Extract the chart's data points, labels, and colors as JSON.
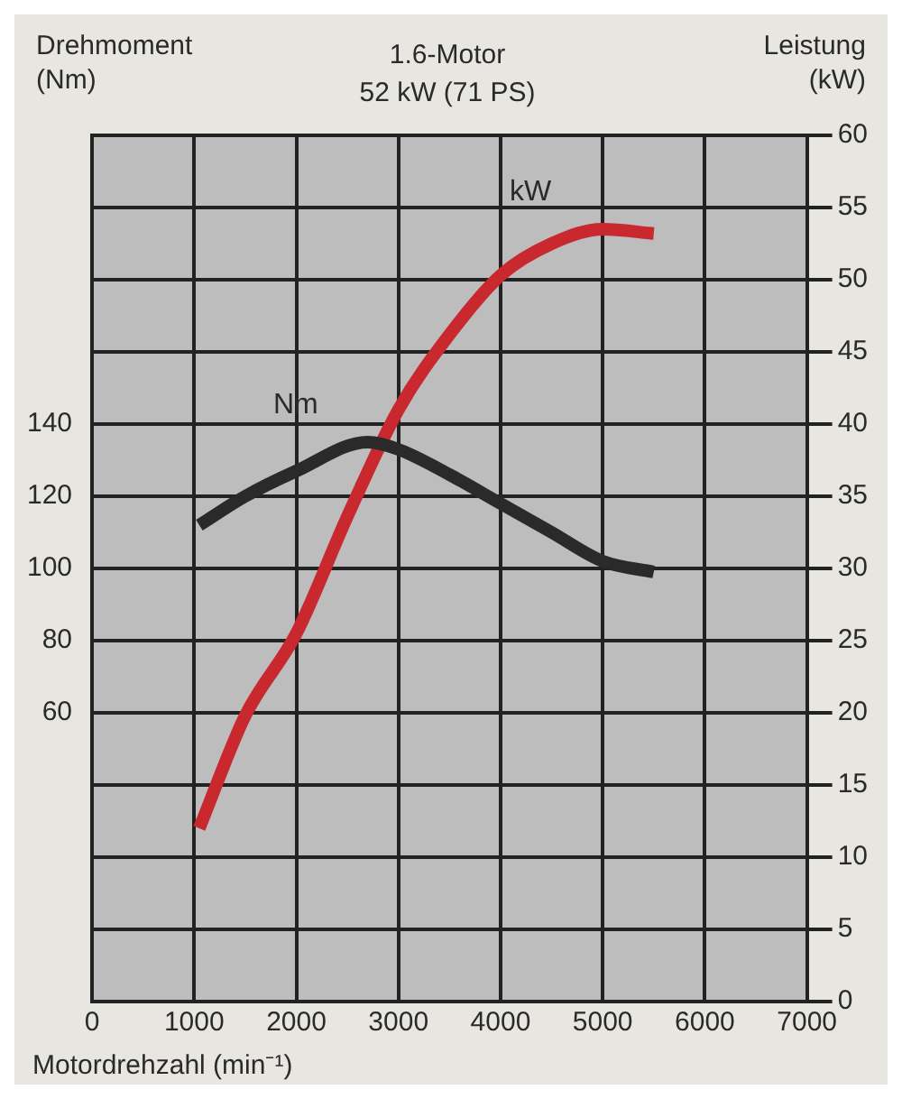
{
  "chart_data": {
    "type": "line",
    "title": "1.6-Motor",
    "subtitle": "52 kW (71 PS)",
    "xlabel": "Motordrehzahl (min⁻¹)",
    "ylabel": "Drehmoment (Nm)",
    "y2label": "Leistung (kW)",
    "xlim": [
      0,
      7000
    ],
    "xticks": [
      0,
      1000,
      2000,
      3000,
      4000,
      5000,
      6000,
      7000
    ],
    "ylim": [
      -20,
      220
    ],
    "yticks": [
      60,
      80,
      100,
      120,
      140
    ],
    "y2lim": [
      0,
      60
    ],
    "y2ticks": [
      0,
      5,
      10,
      15,
      20,
      25,
      30,
      35,
      40,
      45,
      50,
      55,
      60
    ],
    "grid": true,
    "legend": false,
    "marker": "none",
    "line_style": "solid",
    "series": [
      {
        "name": "Nm",
        "color": "#2a2a2a",
        "x": [
          1050,
          1500,
          2000,
          2700,
          3000,
          3500,
          4000,
          4500,
          5000,
          5500
        ],
        "values": [
          112,
          120,
          127,
          135,
          133,
          126,
          118,
          110,
          102,
          99
        ]
      },
      {
        "name": "kW",
        "color": "#c8282e",
        "axis": "y2",
        "x": [
          1050,
          1500,
          2000,
          2500,
          3000,
          3500,
          4000,
          4500,
          5000,
          5500
        ],
        "values": [
          12,
          19.8,
          25.5,
          33.6,
          41,
          46.2,
          50.3,
          52.5,
          53.5,
          53.2
        ]
      }
    ]
  }
}
